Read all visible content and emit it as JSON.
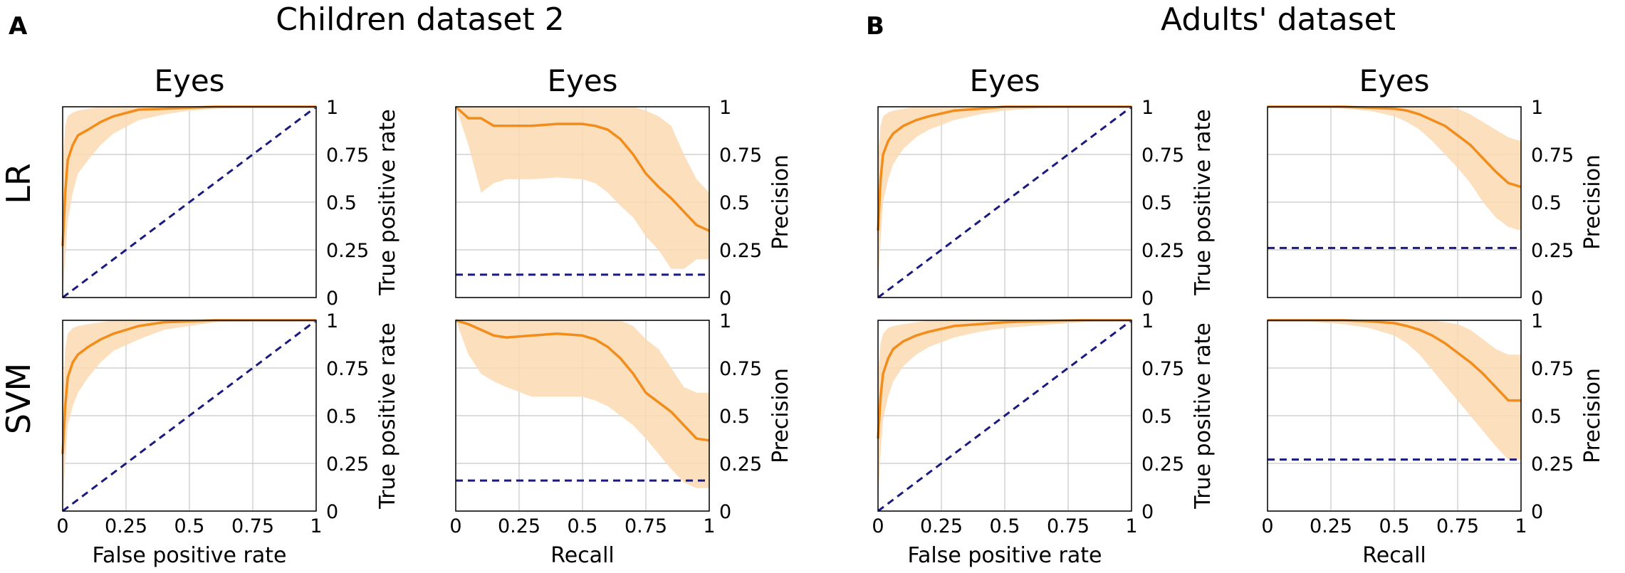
{
  "panels": [
    {
      "letter": "A",
      "title": "Children dataset 2"
    },
    {
      "letter": "B",
      "title": "Adults' dataset"
    }
  ],
  "row_labels": [
    "LR",
    "SVM"
  ],
  "colors": {
    "curve": "#f28c1b",
    "band": "#fcd9b0",
    "baseline": "#1a1a80",
    "grid": "#c8c8c8",
    "axis": "#000000"
  },
  "chart_data": [
    {
      "id": "A-LR-ROC",
      "type": "line",
      "title": "Eyes",
      "xlabel": "",
      "ylabel": "True positive rate",
      "xlim": [
        0,
        1
      ],
      "ylim": [
        0,
        1
      ],
      "xticks": [
        "0",
        "0.25",
        "0.5",
        "0.75",
        "1"
      ],
      "yticks": [
        "0",
        "0.25",
        "0.5",
        "0.75",
        "1"
      ],
      "x_tick_labels_shown": false,
      "y_axis_side": "right",
      "series": [
        {
          "name": "mean",
          "x": [
            0,
            0.01,
            0.02,
            0.04,
            0.06,
            0.1,
            0.15,
            0.2,
            0.3,
            0.4,
            0.5,
            0.6,
            0.8,
            1
          ],
          "y": [
            0.27,
            0.55,
            0.72,
            0.8,
            0.85,
            0.88,
            0.92,
            0.95,
            0.985,
            0.99,
            0.995,
            1,
            1,
            1
          ],
          "lower": [
            0.02,
            0.2,
            0.4,
            0.55,
            0.65,
            0.72,
            0.8,
            0.86,
            0.93,
            0.96,
            0.98,
            0.99,
            1,
            1
          ],
          "upper": [
            0.7,
            0.9,
            0.95,
            0.97,
            0.98,
            0.99,
            1,
            1,
            1,
            1,
            1,
            1,
            1,
            1
          ]
        }
      ],
      "baseline": {
        "type": "diagonal"
      }
    },
    {
      "id": "A-LR-PR",
      "type": "line",
      "title": "Eyes",
      "xlabel": "",
      "ylabel": "Precision",
      "xlim": [
        0,
        1
      ],
      "ylim": [
        0,
        1
      ],
      "xticks": [
        "0",
        "0.25",
        "0.5",
        "0.75",
        "1"
      ],
      "yticks": [
        "0",
        "0.25",
        "0.5",
        "0.75",
        "1"
      ],
      "x_tick_labels_shown": false,
      "y_axis_side": "right",
      "series": [
        {
          "name": "mean",
          "x": [
            0,
            0.05,
            0.1,
            0.15,
            0.2,
            0.3,
            0.4,
            0.5,
            0.55,
            0.6,
            0.65,
            0.7,
            0.75,
            0.8,
            0.85,
            0.9,
            0.95,
            1
          ],
          "y": [
            1,
            0.94,
            0.94,
            0.9,
            0.9,
            0.9,
            0.91,
            0.91,
            0.9,
            0.88,
            0.83,
            0.75,
            0.65,
            0.58,
            0.52,
            0.45,
            0.38,
            0.35
          ],
          "lower": [
            1,
            0.8,
            0.55,
            0.6,
            0.62,
            0.62,
            0.63,
            0.62,
            0.6,
            0.55,
            0.48,
            0.42,
            0.32,
            0.25,
            0.15,
            0.15,
            0.2,
            0.2
          ],
          "upper": [
            1,
            1,
            1,
            1,
            1,
            1,
            1,
            1,
            1,
            1,
            1,
            1,
            0.98,
            0.95,
            0.9,
            0.75,
            0.62,
            0.55
          ]
        }
      ],
      "baseline": {
        "type": "horizontal",
        "y": 0.12
      }
    },
    {
      "id": "A-SVM-ROC",
      "type": "line",
      "title": "",
      "xlabel": "False positive rate",
      "ylabel": "True positive rate",
      "xlim": [
        0,
        1
      ],
      "ylim": [
        0,
        1
      ],
      "xticks": [
        "0",
        "0.25",
        "0.5",
        "0.75",
        "1"
      ],
      "yticks": [
        "0",
        "0.25",
        "0.5",
        "0.75",
        "1"
      ],
      "x_tick_labels_shown": true,
      "y_axis_side": "right",
      "series": [
        {
          "name": "mean",
          "x": [
            0,
            0.01,
            0.02,
            0.04,
            0.06,
            0.1,
            0.15,
            0.2,
            0.3,
            0.4,
            0.5,
            0.6,
            0.8,
            1
          ],
          "y": [
            0.3,
            0.55,
            0.7,
            0.78,
            0.82,
            0.86,
            0.9,
            0.93,
            0.97,
            0.99,
            0.995,
            1,
            1,
            1
          ],
          "lower": [
            0.02,
            0.25,
            0.45,
            0.55,
            0.62,
            0.7,
            0.78,
            0.84,
            0.9,
            0.95,
            0.97,
            0.99,
            1,
            1
          ],
          "upper": [
            0.6,
            0.85,
            0.93,
            0.96,
            0.97,
            0.98,
            0.99,
            1,
            1,
            1,
            1,
            1,
            1,
            1
          ]
        }
      ],
      "baseline": {
        "type": "diagonal"
      }
    },
    {
      "id": "A-SVM-PR",
      "type": "line",
      "title": "",
      "xlabel": "Recall",
      "ylabel": "Precision",
      "xlim": [
        0,
        1
      ],
      "ylim": [
        0,
        1
      ],
      "xticks": [
        "0",
        "0.25",
        "0.5",
        "0.75",
        "1"
      ],
      "yticks": [
        "0",
        "0.25",
        "0.5",
        "0.75",
        "1"
      ],
      "x_tick_labels_shown": true,
      "y_axis_side": "right",
      "series": [
        {
          "name": "mean",
          "x": [
            0,
            0.05,
            0.1,
            0.15,
            0.2,
            0.3,
            0.4,
            0.5,
            0.55,
            0.6,
            0.65,
            0.7,
            0.75,
            0.8,
            0.85,
            0.9,
            0.95,
            1
          ],
          "y": [
            1,
            0.98,
            0.95,
            0.92,
            0.91,
            0.92,
            0.93,
            0.92,
            0.9,
            0.86,
            0.8,
            0.72,
            0.62,
            0.57,
            0.52,
            0.45,
            0.38,
            0.37
          ],
          "lower": [
            1,
            0.82,
            0.72,
            0.68,
            0.65,
            0.6,
            0.6,
            0.6,
            0.58,
            0.55,
            0.5,
            0.45,
            0.38,
            0.3,
            0.22,
            0.15,
            0.12,
            0.12
          ],
          "upper": [
            1,
            1,
            1,
            1,
            1,
            1,
            1,
            1,
            1,
            1,
            1,
            0.97,
            0.9,
            0.85,
            0.75,
            0.65,
            0.62,
            0.62
          ]
        }
      ],
      "baseline": {
        "type": "horizontal",
        "y": 0.16
      }
    },
    {
      "id": "B-LR-ROC",
      "type": "line",
      "title": "Eyes",
      "xlabel": "",
      "ylabel": "True positive rate",
      "xlim": [
        0,
        1
      ],
      "ylim": [
        0,
        1
      ],
      "xticks": [
        "0",
        "0.25",
        "0.5",
        "0.75",
        "1"
      ],
      "yticks": [
        "0",
        "0.25",
        "0.5",
        "0.75",
        "1"
      ],
      "x_tick_labels_shown": false,
      "y_axis_side": "right",
      "series": [
        {
          "name": "mean",
          "x": [
            0,
            0.01,
            0.02,
            0.04,
            0.06,
            0.1,
            0.15,
            0.2,
            0.3,
            0.4,
            0.5,
            0.6,
            0.8,
            1
          ],
          "y": [
            0.35,
            0.62,
            0.75,
            0.82,
            0.86,
            0.9,
            0.93,
            0.95,
            0.98,
            0.99,
            1,
            1,
            1,
            1
          ],
          "lower": [
            0.05,
            0.3,
            0.5,
            0.62,
            0.7,
            0.78,
            0.84,
            0.88,
            0.93,
            0.96,
            0.98,
            0.99,
            1,
            1
          ],
          "upper": [
            0.75,
            0.9,
            0.95,
            0.97,
            0.98,
            0.99,
            1,
            1,
            1,
            1,
            1,
            1,
            1,
            1
          ]
        }
      ],
      "baseline": {
        "type": "diagonal"
      }
    },
    {
      "id": "B-LR-PR",
      "type": "line",
      "title": "Eyes",
      "xlabel": "",
      "ylabel": "Precision",
      "xlim": [
        0,
        1
      ],
      "ylim": [
        0,
        1
      ],
      "xticks": [
        "0",
        "0.25",
        "0.5",
        "0.75",
        "1"
      ],
      "yticks": [
        "0",
        "0.25",
        "0.5",
        "0.75",
        "1"
      ],
      "x_tick_labels_shown": false,
      "y_axis_side": "right",
      "series": [
        {
          "name": "mean",
          "x": [
            0,
            0.1,
            0.2,
            0.3,
            0.4,
            0.5,
            0.55,
            0.6,
            0.65,
            0.7,
            0.75,
            0.8,
            0.85,
            0.9,
            0.95,
            1
          ],
          "y": [
            1,
            1,
            1,
            1,
            0.995,
            0.99,
            0.98,
            0.96,
            0.93,
            0.9,
            0.85,
            0.8,
            0.73,
            0.66,
            0.6,
            0.58
          ],
          "lower": [
            1,
            1,
            1,
            0.99,
            0.98,
            0.95,
            0.92,
            0.88,
            0.82,
            0.75,
            0.68,
            0.6,
            0.5,
            0.42,
            0.37,
            0.35
          ],
          "upper": [
            1,
            1,
            1,
            1,
            1,
            1,
            1,
            1,
            1,
            1,
            0.99,
            0.96,
            0.92,
            0.88,
            0.84,
            0.82
          ]
        }
      ],
      "baseline": {
        "type": "horizontal",
        "y": 0.26
      }
    },
    {
      "id": "B-SVM-ROC",
      "type": "line",
      "title": "",
      "xlabel": "False positive rate",
      "ylabel": "True positive rate",
      "xlim": [
        0,
        1
      ],
      "ylim": [
        0,
        1
      ],
      "xticks": [
        "0",
        "0.25",
        "0.5",
        "0.75",
        "1"
      ],
      "yticks": [
        "0",
        "0.25",
        "0.5",
        "0.75",
        "1"
      ],
      "x_tick_labels_shown": true,
      "y_axis_side": "right",
      "series": [
        {
          "name": "mean",
          "x": [
            0,
            0.01,
            0.02,
            0.04,
            0.06,
            0.1,
            0.15,
            0.2,
            0.3,
            0.4,
            0.5,
            0.6,
            0.8,
            1
          ],
          "y": [
            0.38,
            0.6,
            0.72,
            0.8,
            0.85,
            0.89,
            0.92,
            0.94,
            0.97,
            0.98,
            0.99,
            0.995,
            1,
            1
          ],
          "lower": [
            0.05,
            0.3,
            0.48,
            0.6,
            0.68,
            0.76,
            0.82,
            0.86,
            0.91,
            0.94,
            0.96,
            0.97,
            0.99,
            1
          ],
          "upper": [
            0.72,
            0.88,
            0.93,
            0.96,
            0.97,
            0.98,
            0.99,
            1,
            1,
            1,
            1,
            1,
            1,
            1
          ]
        }
      ],
      "baseline": {
        "type": "diagonal"
      }
    },
    {
      "id": "B-SVM-PR",
      "type": "line",
      "title": "",
      "xlabel": "Recall",
      "ylabel": "Precision",
      "xlim": [
        0,
        1
      ],
      "ylim": [
        0,
        1
      ],
      "xticks": [
        "0",
        "0.25",
        "0.5",
        "0.75",
        "1"
      ],
      "yticks": [
        "0",
        "0.25",
        "0.5",
        "0.75",
        "1"
      ],
      "x_tick_labels_shown": true,
      "y_axis_side": "right",
      "series": [
        {
          "name": "mean",
          "x": [
            0,
            0.1,
            0.2,
            0.3,
            0.4,
            0.5,
            0.55,
            0.6,
            0.65,
            0.7,
            0.75,
            0.8,
            0.85,
            0.9,
            0.95,
            1
          ],
          "y": [
            1,
            1,
            1,
            1,
            0.995,
            0.985,
            0.97,
            0.95,
            0.92,
            0.88,
            0.83,
            0.78,
            0.72,
            0.65,
            0.58,
            0.58
          ],
          "lower": [
            1,
            1,
            0.99,
            0.98,
            0.96,
            0.92,
            0.88,
            0.82,
            0.74,
            0.66,
            0.58,
            0.5,
            0.42,
            0.34,
            0.27,
            0.27
          ],
          "upper": [
            1,
            1,
            1,
            1,
            1,
            1,
            1,
            1,
            1,
            0.99,
            0.98,
            0.95,
            0.9,
            0.85,
            0.82,
            0.82
          ]
        }
      ],
      "baseline": {
        "type": "horizontal",
        "y": 0.27
      }
    }
  ]
}
